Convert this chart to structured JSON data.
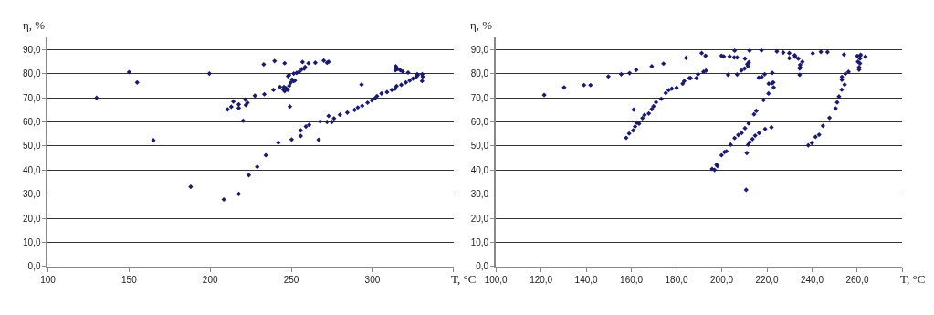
{
  "chart_data": [
    {
      "type": "scatter",
      "xlabel": "T, °C",
      "ylabel": "η, %",
      "marker": "diamond",
      "grid": "y",
      "xlim": [
        100,
        350
      ],
      "xticks": [
        100,
        150,
        200,
        250,
        300,
        {
          "value": 350,
          "label": null
        }
      ],
      "ylim": [
        0,
        95
      ],
      "yticks": [
        {
          "value": 0,
          "label": "0,0"
        },
        {
          "value": 10,
          "label": "10,0"
        },
        {
          "value": 20,
          "label": "20,0"
        },
        {
          "value": 30,
          "label": "30,0"
        },
        {
          "value": 40,
          "label": "40,0"
        },
        {
          "value": 50,
          "label": "50,0"
        },
        {
          "value": 60,
          "label": "60,0"
        },
        {
          "value": 70,
          "label": "70,0"
        },
        {
          "value": 80,
          "label": "80,0"
        },
        {
          "value": 90,
          "label": "90,0"
        }
      ],
      "series": [
        {
          "color": "#1a1a6e",
          "x": [
            130,
            150,
            155,
            165,
            188,
            199.5,
            210.7,
            213,
            214.3,
            217.6,
            217.6,
            220.3,
            221.6,
            222,
            223,
            208.4,
            217.6,
            223.8,
            229,
            227.6,
            233.4,
            233,
            234.3,
            239.7,
            239,
            242,
            245.9,
            243,
            245,
            246.9,
            247.8,
            245.5,
            245.9,
            248.7,
            249.6,
            248,
            248.6,
            250.5,
            251.5,
            252.2,
            251.5,
            253.3,
            255,
            256.5,
            258,
            258.5,
            249.1,
            250.2,
            255.8,
            255.8,
            259,
            261,
            256.9,
            260.6,
            264.8,
            270,
            272,
            273,
            266.9,
            267.8,
            272,
            273,
            275,
            276.3,
            280,
            284.5,
            289,
            291,
            293.7,
            297,
            299.6,
            301.5,
            302.8,
            305.6,
            309,
            311.9,
            314,
            314.9,
            317.8,
            320.6,
            323,
            325,
            327,
            328,
            330.7,
            331,
            330.6,
            327.6,
            293.3,
            314.4,
            315.5,
            314.2,
            317.2,
            318.7,
            322
          ],
          "values": [
            70,
            80.7,
            76.4,
            52.4,
            33.1,
            80.1,
            65.2,
            66.3,
            68.5,
            67.3,
            65.8,
            60.5,
            69.3,
            67,
            68,
            27.8,
            30.1,
            37.9,
            41.4,
            70.9,
            71.5,
            83.9,
            46.2,
            85.3,
            73.3,
            51.4,
            84.4,
            74.5,
            73.5,
            73.9,
            73.3,
            74.5,
            72.8,
            75,
            76.3,
            79,
            79.5,
            77.6,
            77,
            77.2,
            80.1,
            80.4,
            80.9,
            81.9,
            82.2,
            82.8,
            66.4,
            52.7,
            56.5,
            54.2,
            58.1,
            58.8,
            84.9,
            84.4,
            84.6,
            85.5,
            84.6,
            85,
            52.6,
            60.2,
            60,
            62.5,
            60,
            61.5,
            63,
            63.9,
            65,
            66,
            66.7,
            68,
            69,
            69.8,
            70.7,
            71.8,
            72.4,
            73.3,
            73.8,
            74.9,
            75.4,
            76.4,
            77.2,
            78,
            78.7,
            79.5,
            79.8,
            78.8,
            77,
            79.8,
            75.5,
            83.1,
            82.1,
            81.5,
            81.5,
            80.9,
            80.5
          ]
        }
      ]
    },
    {
      "type": "scatter",
      "xlabel": "T, °C",
      "ylabel": "η, %",
      "marker": "diamond",
      "grid": "y",
      "xlim": [
        100,
        280
      ],
      "xticks": [
        {
          "value": 100,
          "label": "100,0"
        },
        {
          "value": 120,
          "label": "120,0"
        },
        {
          "value": 140,
          "label": "140,0"
        },
        {
          "value": 160,
          "label": "160,0"
        },
        {
          "value": 180,
          "label": "180,0"
        },
        {
          "value": 200,
          "label": "200,0"
        },
        {
          "value": 220,
          "label": "220,0"
        },
        {
          "value": 240,
          "label": "240,0"
        },
        {
          "value": 260,
          "label": "260,0"
        },
        {
          "value": 280,
          "label": null
        }
      ],
      "ylim": [
        0,
        95
      ],
      "yticks": [
        {
          "value": 0,
          "label": "0,0"
        },
        {
          "value": 10,
          "label": "10,0"
        },
        {
          "value": 20,
          "label": "20,0"
        },
        {
          "value": 30,
          "label": "30,0"
        },
        {
          "value": 40,
          "label": "40,0"
        },
        {
          "value": 50,
          "label": "50,0"
        },
        {
          "value": 60,
          "label": "60,0"
        },
        {
          "value": 70,
          "label": "70,0"
        },
        {
          "value": 80,
          "label": "80,0"
        },
        {
          "value": 90,
          "label": "90,0"
        }
      ],
      "series": [
        {
          "color": "#1a1a6e",
          "x": [
            121.4,
            130.2,
            139,
            141.9,
            149.8,
            155.5,
            159.2,
            162.1,
            169,
            174.2,
            184.2,
            191.1,
            191.9,
            189.5,
            188.8,
            186.2,
            183.4,
            182.7,
            180,
            177.9,
            176.5,
            175.2,
            173.2,
            170.9,
            169.8,
            169,
            167.7,
            165.8,
            164.9,
            163.4,
            162.3,
            161.6,
            160.8,
            159,
            157.7,
            161,
            185.7,
            193,
            192.8,
            199.9,
            200.9,
            203.5,
            205.7,
            205.5,
            206.8,
            202.8,
            206.8,
            208.7,
            210.1,
            210.3,
            211.3,
            212,
            211.6,
            212.3,
            217.6,
            216.4,
            217.7,
            219,
            220.8,
            222.3,
            222.8,
            223,
            222.4,
            220.7,
            218.5,
            215.3,
            214.3,
            211.9,
            210.3,
            208.8,
            207.3,
            205.7,
            203.9,
            202.1,
            201.2,
            199.9,
            197.7,
            198.1,
            195.7,
            196.8,
            210.8,
            211.1,
            211.7,
            212.4,
            213.6,
            214.8,
            216.5,
            219.2,
            222,
            224.4,
            227.2,
            229.9,
            229.9,
            232.3,
            232.5,
            233.9,
            235.7,
            234.7,
            234.7,
            234.5,
            234.5,
            240.3,
            243.9,
            246.8,
            238.3,
            239.9,
            241.5,
            243.1,
            244.8,
            247.7,
            250.4,
            251.1,
            251.9,
            253.1,
            254.4,
            253.2,
            253.2,
            254.7,
            256.1,
            254.1,
            260,
            261.2,
            261.5,
            261.2,
            260.3,
            261.2,
            260.8,
            260.8,
            263.6
          ],
          "values": [
            71.2,
            74.3,
            75.3,
            75.3,
            78.9,
            79.8,
            80.3,
            81.6,
            83.1,
            84.2,
            86.6,
            88.6,
            80.8,
            79.8,
            78.2,
            78.2,
            77,
            75.9,
            74.2,
            73.8,
            73.2,
            72,
            69.6,
            68.2,
            66.5,
            65.3,
            63.5,
            62.9,
            61.6,
            59.3,
            59.7,
            58.1,
            56.5,
            55.2,
            53.4,
            65.1,
            78.2,
            81.3,
            87.5,
            87.5,
            87.2,
            87.2,
            89.6,
            86.8,
            86.8,
            79.6,
            79.7,
            81.4,
            82.2,
            86.3,
            84,
            84.8,
            83.2,
            89.6,
            89.7,
            78.4,
            78.7,
            79.8,
            75.9,
            76.1,
            76.4,
            74.3,
            80.4,
            71.8,
            69.1,
            64.6,
            63.2,
            59.4,
            57.4,
            55.4,
            54.6,
            53.3,
            50.6,
            47.8,
            47.5,
            46.2,
            42.2,
            41.7,
            40.5,
            40.1,
            31.8,
            47.1,
            50.6,
            51.6,
            52.9,
            54.3,
            55.4,
            57.1,
            57.8,
            89.3,
            88.8,
            88.6,
            86.5,
            87.7,
            87.1,
            86.3,
            85,
            83.7,
            82.7,
            82.2,
            79.6,
            88.5,
            89.1,
            89,
            50.3,
            51.3,
            53.8,
            54.7,
            58.4,
            61.7,
            65.6,
            68.1,
            70.6,
            73.4,
            75.5,
            77.5,
            78.7,
            80,
            80.8,
            88,
            87.4,
            87.4,
            87.9,
            86.3,
            85,
            84.3,
            82.7,
            81.7,
            87.1
          ]
        }
      ]
    }
  ]
}
